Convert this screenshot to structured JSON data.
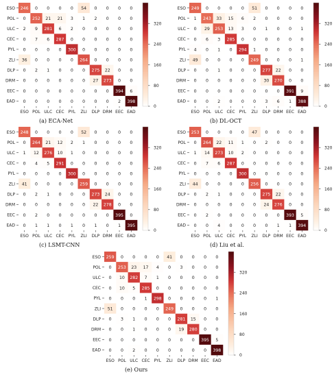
{
  "labels": [
    "ESO",
    "POL",
    "ULC",
    "CEC",
    "PYL",
    "ZLI",
    "DLP",
    "DRM",
    "EEC",
    "EAD"
  ],
  "colorbar": {
    "ticks": [
      0,
      80,
      160,
      240,
      320
    ],
    "range": [
      0,
      400
    ]
  },
  "chart_data": [
    {
      "type": "heatmap",
      "caption": "(a) ECA-Net",
      "labels": [
        "ESO",
        "POL",
        "ULC",
        "CEC",
        "PYL",
        "ZLI",
        "DLP",
        "DRM",
        "EEC",
        "EAD"
      ],
      "matrix": [
        [
          246,
          0,
          0,
          0,
          0,
          54,
          0,
          0,
          0,
          0
        ],
        [
          0,
          252,
          21,
          21,
          3,
          1,
          2,
          0,
          0,
          0
        ],
        [
          2,
          9,
          281,
          6,
          2,
          0,
          0,
          0,
          0,
          0
        ],
        [
          0,
          7,
          6,
          287,
          0,
          0,
          0,
          0,
          0,
          0
        ],
        [
          0,
          0,
          0,
          0,
          300,
          0,
          0,
          0,
          0,
          0
        ],
        [
          36,
          0,
          0,
          0,
          0,
          264,
          0,
          0,
          0,
          0
        ],
        [
          0,
          2,
          1,
          0,
          0,
          0,
          275,
          22,
          0,
          0
        ],
        [
          0,
          0,
          0,
          0,
          0,
          0,
          27,
          273,
          0,
          0
        ],
        [
          0,
          0,
          0,
          0,
          0,
          0,
          0,
          0,
          394,
          6
        ],
        [
          0,
          0,
          0,
          0,
          0,
          0,
          0,
          0,
          2,
          398
        ]
      ],
      "colorbar_ticks": [
        0,
        80,
        160,
        240,
        320
      ]
    },
    {
      "type": "heatmap",
      "caption": "(b) DL-OCT",
      "labels": [
        "ESO",
        "POL",
        "ULC",
        "CEC",
        "PYL",
        "ZLI",
        "DLP",
        "DRM",
        "EEC",
        "EAD"
      ],
      "matrix": [
        [
          249,
          0,
          0,
          0,
          0,
          51,
          0,
          0,
          0,
          0
        ],
        [
          1,
          243,
          33,
          15,
          6,
          2,
          0,
          0,
          0,
          0
        ],
        [
          0,
          29,
          253,
          13,
          3,
          0,
          1,
          0,
          0,
          1
        ],
        [
          0,
          6,
          3,
          285,
          0,
          0,
          0,
          0,
          0,
          0
        ],
        [
          4,
          0,
          1,
          0,
          294,
          1,
          0,
          0,
          0,
          0
        ],
        [
          49,
          0,
          0,
          0,
          0,
          249,
          0,
          0,
          0,
          1
        ],
        [
          0,
          0,
          1,
          0,
          0,
          0,
          277,
          22,
          0,
          0
        ],
        [
          0,
          0,
          0,
          0,
          0,
          0,
          30,
          270,
          0,
          0
        ],
        [
          0,
          0,
          0,
          0,
          0,
          0,
          0,
          0,
          391,
          9
        ],
        [
          0,
          0,
          2,
          0,
          0,
          0,
          3,
          6,
          1,
          388
        ]
      ],
      "colorbar_ticks": [
        0,
        80,
        160,
        240,
        320
      ]
    },
    {
      "type": "heatmap",
      "caption": "(c) LSMT-CNN",
      "labels": [
        "ESO",
        "POL",
        "ULC",
        "CEC",
        "PYL",
        "ZLI",
        "DLP",
        "DRM",
        "EEC",
        "EAD"
      ],
      "matrix": [
        [
          248,
          0,
          0,
          0,
          0,
          52,
          0,
          0,
          0,
          0
        ],
        [
          0,
          264,
          21,
          12,
          2,
          1,
          0,
          0,
          0,
          0
        ],
        [
          1,
          12,
          276,
          10,
          1,
          0,
          0,
          0,
          0,
          0
        ],
        [
          0,
          4,
          5,
          291,
          0,
          0,
          0,
          0,
          0,
          0
        ],
        [
          0,
          0,
          0,
          0,
          300,
          0,
          0,
          0,
          0,
          0
        ],
        [
          41,
          0,
          0,
          0,
          0,
          259,
          0,
          0,
          0,
          0
        ],
        [
          0,
          2,
          1,
          0,
          0,
          0,
          273,
          24,
          0,
          0
        ],
        [
          0,
          0,
          0,
          0,
          0,
          0,
          22,
          278,
          0,
          0
        ],
        [
          0,
          2,
          0,
          0,
          0,
          0,
          0,
          0,
          395,
          0
        ],
        [
          0,
          1,
          1,
          0,
          1,
          0,
          1,
          0,
          1,
          395
        ]
      ],
      "colorbar_ticks": [
        0,
        80,
        160,
        240,
        320
      ]
    },
    {
      "type": "heatmap",
      "caption": "(d) Liu et al.",
      "labels": [
        "ESO",
        "POL",
        "ULC",
        "CEC",
        "PYL",
        "ZLI",
        "DLP",
        "DRM",
        "EEC",
        "EAD"
      ],
      "matrix": [
        [
          253,
          0,
          0,
          0,
          0,
          47,
          0,
          0,
          0,
          0
        ],
        [
          0,
          264,
          22,
          11,
          1,
          0,
          2,
          0,
          0,
          0
        ],
        [
          1,
          14,
          273,
          10,
          2,
          0,
          0,
          0,
          0,
          0
        ],
        [
          0,
          7,
          6,
          287,
          0,
          0,
          0,
          0,
          0,
          0
        ],
        [
          0,
          0,
          0,
          0,
          300,
          0,
          0,
          0,
          0,
          0
        ],
        [
          44,
          0,
          0,
          0,
          0,
          256,
          0,
          0,
          0,
          0
        ],
        [
          0,
          2,
          1,
          0,
          0,
          0,
          275,
          22,
          0,
          0
        ],
        [
          0,
          0,
          0,
          0,
          0,
          0,
          24,
          276,
          0,
          0
        ],
        [
          0,
          2,
          0,
          0,
          0,
          0,
          0,
          0,
          393,
          5
        ],
        [
          0,
          0,
          4,
          0,
          0,
          0,
          0,
          1,
          1,
          394
        ]
      ],
      "colorbar_ticks": [
        0,
        80,
        160,
        240,
        320
      ]
    },
    {
      "type": "heatmap",
      "caption": "(e) Ours",
      "labels": [
        "ESO",
        "POL",
        "ULC",
        "CEC",
        "PYL",
        "ZLI",
        "DLP",
        "DRM",
        "EEC",
        "EAD"
      ],
      "matrix": [
        [
          259,
          0,
          0,
          0,
          0,
          41,
          0,
          0,
          0,
          0
        ],
        [
          0,
          253,
          23,
          17,
          4,
          0,
          3,
          0,
          0,
          0
        ],
        [
          0,
          10,
          282,
          7,
          1,
          0,
          0,
          0,
          0,
          0
        ],
        [
          0,
          10,
          5,
          285,
          0,
          0,
          0,
          0,
          0,
          0
        ],
        [
          0,
          0,
          0,
          1,
          298,
          0,
          0,
          0,
          0,
          1
        ],
        [
          51,
          0,
          0,
          0,
          0,
          249,
          0,
          0,
          0,
          0
        ],
        [
          0,
          3,
          1,
          0,
          0,
          0,
          281,
          15,
          0,
          0
        ],
        [
          0,
          0,
          1,
          0,
          0,
          0,
          19,
          280,
          0,
          0
        ],
        [
          0,
          0,
          0,
          0,
          0,
          0,
          0,
          0,
          395,
          5
        ],
        [
          0,
          0,
          2,
          0,
          0,
          0,
          0,
          0,
          0,
          398
        ]
      ],
      "colorbar_ticks": [
        0,
        80,
        160,
        240,
        320
      ]
    }
  ]
}
